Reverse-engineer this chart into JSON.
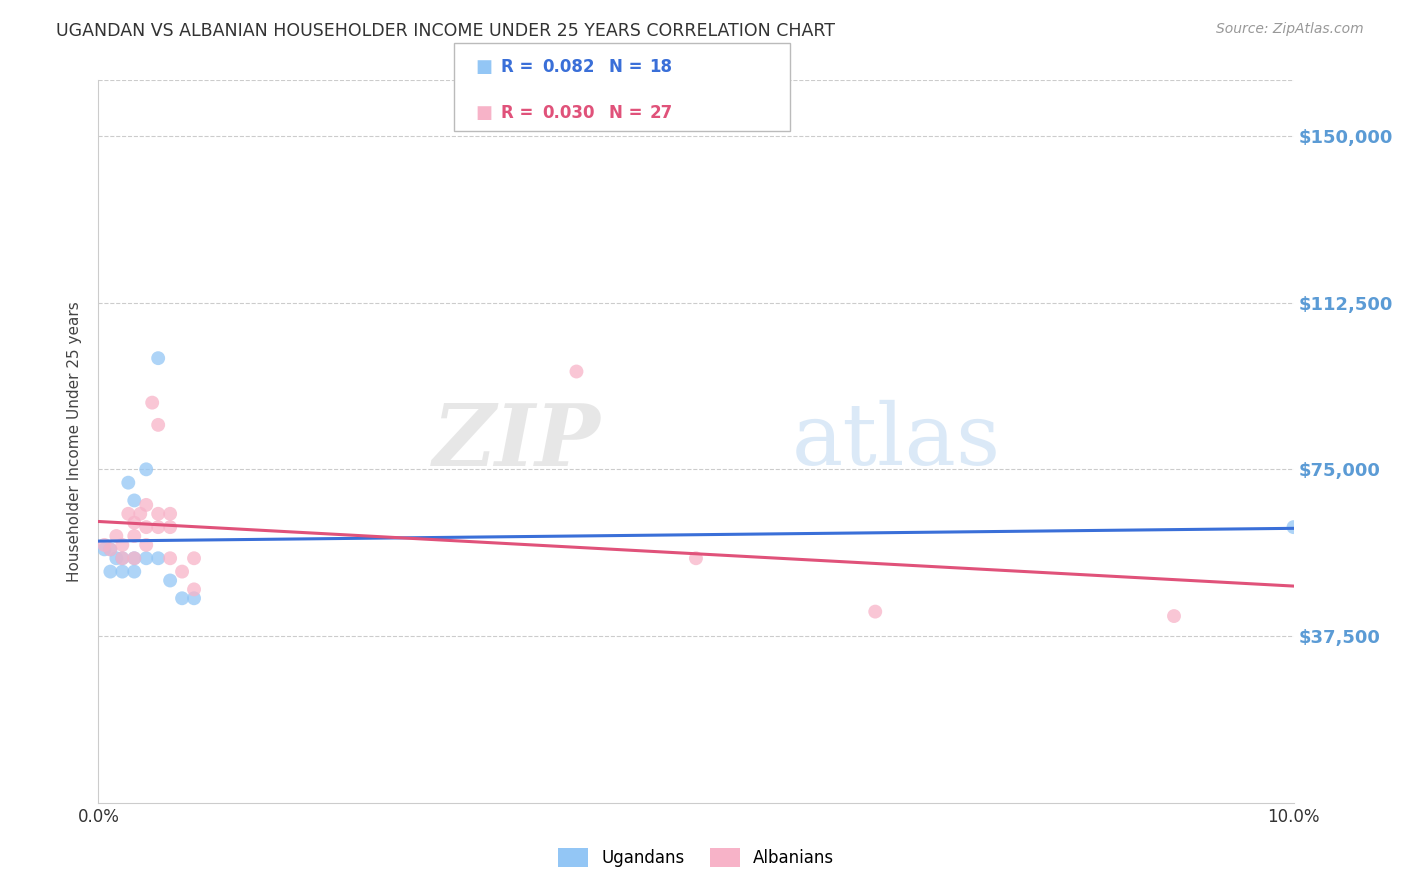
{
  "title": "UGANDAN VS ALBANIAN HOUSEHOLDER INCOME UNDER 25 YEARS CORRELATION CHART",
  "source": "Source: ZipAtlas.com",
  "ylabel": "Householder Income Under 25 years",
  "y_tick_labels": [
    "$37,500",
    "$75,000",
    "$112,500",
    "$150,000"
  ],
  "y_tick_values": [
    37500,
    75000,
    112500,
    150000
  ],
  "y_min": 0,
  "y_max": 162500,
  "x_min": 0.0,
  "x_max": 0.1,
  "ugandan_color": "#93c6f5",
  "albanian_color": "#f7b3c8",
  "ugandan_line_color": "#3a6fd8",
  "albanian_line_color": "#e0527a",
  "watermark_zip": "ZIP",
  "watermark_atlas": "atlas",
  "ugandan_points": [
    [
      0.0005,
      57000
    ],
    [
      0.001,
      52000
    ],
    [
      0.001,
      57000
    ],
    [
      0.0015,
      55000
    ],
    [
      0.002,
      55000
    ],
    [
      0.002,
      52000
    ],
    [
      0.0025,
      72000
    ],
    [
      0.003,
      68000
    ],
    [
      0.003,
      55000
    ],
    [
      0.003,
      52000
    ],
    [
      0.004,
      75000
    ],
    [
      0.004,
      55000
    ],
    [
      0.005,
      100000
    ],
    [
      0.005,
      55000
    ],
    [
      0.006,
      50000
    ],
    [
      0.007,
      46000
    ],
    [
      0.008,
      46000
    ],
    [
      0.1,
      62000
    ]
  ],
  "albanian_points": [
    [
      0.0005,
      58000
    ],
    [
      0.001,
      57000
    ],
    [
      0.0015,
      60000
    ],
    [
      0.002,
      58000
    ],
    [
      0.002,
      55000
    ],
    [
      0.0025,
      65000
    ],
    [
      0.003,
      63000
    ],
    [
      0.003,
      60000
    ],
    [
      0.003,
      55000
    ],
    [
      0.0035,
      65000
    ],
    [
      0.004,
      67000
    ],
    [
      0.004,
      62000
    ],
    [
      0.004,
      58000
    ],
    [
      0.0045,
      90000
    ],
    [
      0.005,
      85000
    ],
    [
      0.005,
      65000
    ],
    [
      0.005,
      62000
    ],
    [
      0.006,
      65000
    ],
    [
      0.006,
      62000
    ],
    [
      0.006,
      55000
    ],
    [
      0.007,
      52000
    ],
    [
      0.008,
      55000
    ],
    [
      0.008,
      48000
    ],
    [
      0.04,
      97000
    ],
    [
      0.05,
      55000
    ],
    [
      0.065,
      43000
    ],
    [
      0.09,
      42000
    ]
  ],
  "background_color": "#ffffff",
  "grid_color": "#cccccc",
  "title_color": "#333333",
  "right_label_color": "#5b9bd5",
  "marker_size": 100
}
